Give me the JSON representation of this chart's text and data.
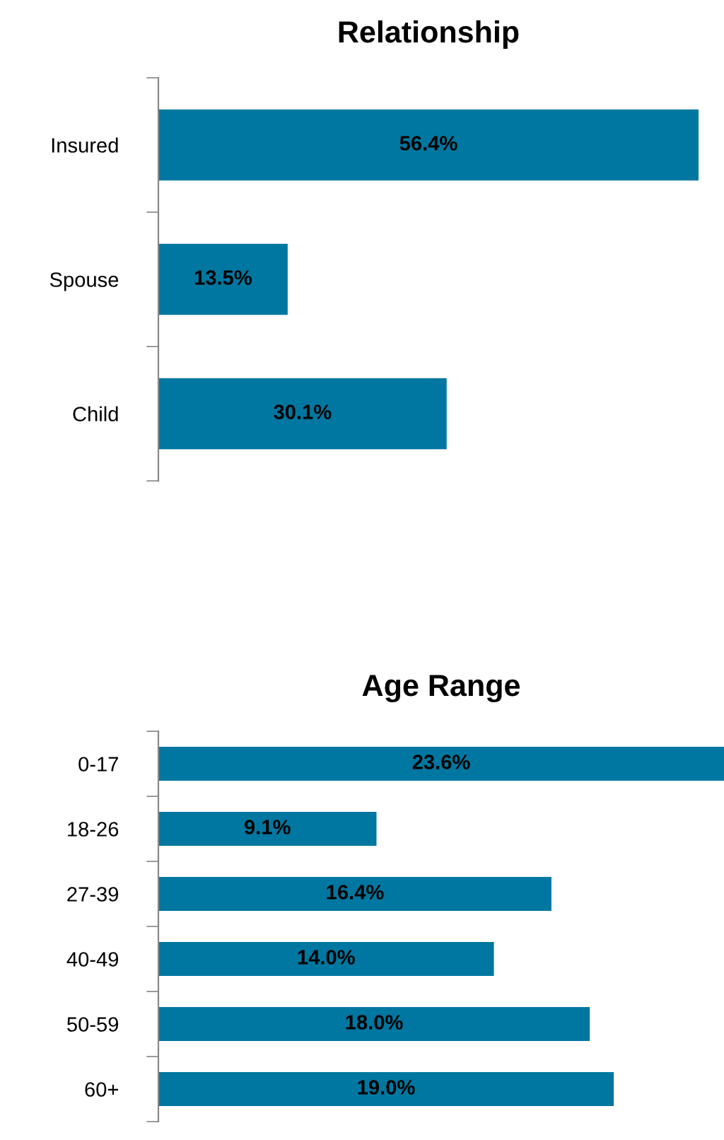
{
  "chart_data": [
    {
      "type": "bar",
      "orientation": "horizontal",
      "title": "Relationship",
      "categories": [
        "Insured",
        "Spouse",
        "Child"
      ],
      "values": [
        56.4,
        13.5,
        30.1
      ],
      "value_labels": [
        "56.4%",
        "13.5%",
        "30.1%"
      ],
      "color": "#0077a0",
      "grid": false,
      "legend": false,
      "tick_labels": "y"
    },
    {
      "type": "bar",
      "orientation": "horizontal",
      "title": "Age Range",
      "categories": [
        "0-17",
        "18-26",
        "27-39",
        "40-49",
        "50-59",
        "60+"
      ],
      "values": [
        23.6,
        9.1,
        16.4,
        14.0,
        18.0,
        19.0
      ],
      "value_labels": [
        "23.6%",
        "9.1%",
        "16.4%",
        "14.0%",
        "18.0%",
        "19.0%"
      ],
      "color": "#0077a0",
      "grid": false,
      "legend": false,
      "tick_labels": "y"
    }
  ]
}
